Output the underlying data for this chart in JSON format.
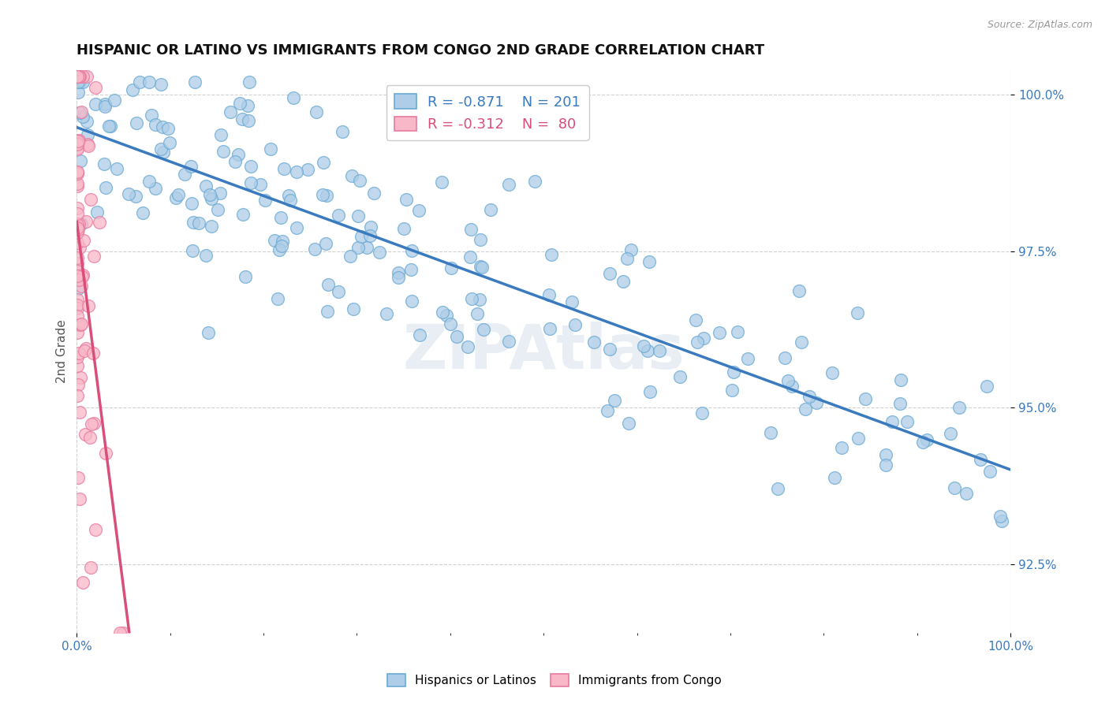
{
  "title": "HISPANIC OR LATINO VS IMMIGRANTS FROM CONGO 2ND GRADE CORRELATION CHART",
  "source": "Source: ZipAtlas.com",
  "ylabel": "2nd Grade",
  "blue_R": -0.871,
  "blue_N": 201,
  "pink_R": -0.312,
  "pink_N": 80,
  "blue_color": "#aecde8",
  "blue_edge_color": "#6aaad4",
  "blue_line_color": "#3a7abf",
  "pink_color": "#f9b8c8",
  "pink_edge_color": "#e87aa0",
  "pink_line_color": "#d94f7a",
  "background_color": "#ffffff",
  "watermark": "ZIPAtlas",
  "xmin": 0.0,
  "xmax": 1.0,
  "ymin": 0.914,
  "ymax": 1.004,
  "ytick_vals": [
    0.925,
    0.95,
    0.975,
    1.0
  ],
  "ytick_labels": [
    "92.5%",
    "95.0%",
    "97.5%",
    "100.0%"
  ],
  "title_fontsize": 13,
  "axis_label_fontsize": 11,
  "tick_fontsize": 11,
  "legend_fontsize": 13
}
